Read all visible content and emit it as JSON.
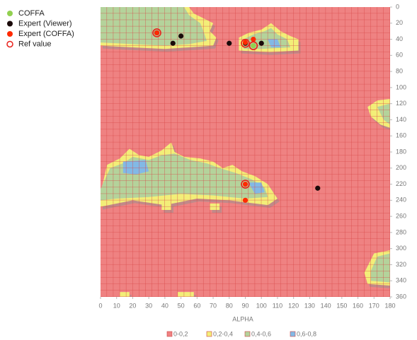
{
  "chart_data": {
    "type": "contour_scatter",
    "xlabel": "ALPHA",
    "xlim": [
      0,
      180
    ],
    "xticks": [
      0,
      10,
      20,
      30,
      40,
      50,
      60,
      70,
      80,
      90,
      100,
      110,
      120,
      130,
      140,
      150,
      160,
      170,
      180
    ],
    "ylim": [
      360,
      0
    ],
    "yticks": [
      0,
      20,
      40,
      60,
      80,
      100,
      120,
      140,
      160,
      180,
      200,
      220,
      240,
      260,
      280,
      300,
      320,
      340,
      360
    ],
    "levels": [
      {
        "name": "0-0,2",
        "color": "#ef8282"
      },
      {
        "name": "0,2-0,4",
        "color": "#f3ee78"
      },
      {
        "name": "0,4-0,6",
        "color": "#b4d39b"
      },
      {
        "name": "0,6-0,8",
        "color": "#82b9e6"
      }
    ],
    "regions": [
      {
        "level": 1,
        "alpha": [
          0,
          55,
          58,
          62,
          70,
          68,
          72,
          70,
          55,
          40,
          20,
          0
        ],
        "beta": [
          0,
          0,
          8,
          12,
          20,
          30,
          38,
          48,
          50,
          52,
          50,
          48
        ]
      },
      {
        "level": 2,
        "alpha": [
          0,
          52,
          55,
          62,
          64,
          66,
          55,
          40,
          20,
          0
        ],
        "beta": [
          0,
          0,
          10,
          20,
          30,
          42,
          46,
          48,
          46,
          44
        ]
      },
      {
        "level": 1,
        "alpha": [
          86,
          92,
          100,
          106,
          112,
          118,
          123,
          123,
          105,
          86
        ],
        "beta": [
          38,
          32,
          28,
          20,
          30,
          36,
          40,
          54,
          56,
          54
        ]
      },
      {
        "level": 2,
        "alpha": [
          89,
          95,
          102,
          106,
          110,
          116,
          118,
          100,
          89
        ],
        "beta": [
          40,
          34,
          30,
          26,
          34,
          40,
          50,
          52,
          52
        ]
      },
      {
        "level": 3,
        "alpha": [
          104,
          110,
          112,
          106
        ],
        "beta": [
          40,
          40,
          50,
          50
        ]
      },
      {
        "level": 1,
        "alpha": [
          0,
          4,
          12,
          18,
          24,
          30,
          38,
          44,
          46,
          52,
          62,
          70,
          76,
          82,
          88,
          96,
          104,
          110,
          104,
          96,
          80,
          60,
          40,
          20,
          0
        ],
        "beta": [
          232,
          196,
          188,
          176,
          184,
          186,
          178,
          168,
          180,
          186,
          188,
          192,
          200,
          196,
          204,
          210,
          220,
          238,
          246,
          244,
          240,
          238,
          246,
          240,
          248
        ]
      },
      {
        "level": 2,
        "alpha": [
          0,
          6,
          14,
          20,
          30,
          38,
          46,
          56,
          66,
          74,
          84,
          94,
          102,
          104,
          90,
          70,
          50,
          30,
          10,
          0
        ],
        "beta": [
          226,
          200,
          194,
          186,
          190,
          184,
          182,
          190,
          194,
          200,
          206,
          214,
          224,
          236,
          238,
          234,
          232,
          236,
          238,
          240
        ]
      },
      {
        "level": 3,
        "alpha": [
          14,
          28,
          30,
          22,
          14
        ],
        "beta": [
          192,
          190,
          204,
          208,
          206
        ]
      },
      {
        "level": 3,
        "alpha": [
          92,
          100,
          102,
          96
        ],
        "beta": [
          218,
          218,
          230,
          232
        ]
      },
      {
        "level": 1,
        "alpha": [
          166,
          172,
          180,
          180,
          174,
          168
        ],
        "beta": [
          124,
          116,
          114,
          150,
          146,
          136
        ]
      },
      {
        "level": 2,
        "alpha": [
          172,
          180,
          180,
          176
        ],
        "beta": [
          124,
          120,
          146,
          140
        ]
      },
      {
        "level": 1,
        "alpha": [
          164,
          170,
          180,
          180,
          166
        ],
        "beta": [
          330,
          306,
          302,
          346,
          344
        ]
      },
      {
        "level": 2,
        "alpha": [
          168,
          172,
          180,
          180,
          168
        ],
        "beta": [
          328,
          310,
          306,
          342,
          340
        ]
      },
      {
        "level": 1,
        "alpha": [
          12,
          18,
          18,
          12
        ],
        "beta": [
          354,
          354,
          360,
          360
        ]
      },
      {
        "level": 1,
        "alpha": [
          48,
          58,
          58,
          48
        ],
        "beta": [
          354,
          354,
          360,
          360
        ]
      },
      {
        "level": 1,
        "alpha": [
          68,
          74,
          74,
          68
        ],
        "beta": [
          244,
          244,
          252,
          252
        ]
      },
      {
        "level": 1,
        "alpha": [
          38,
          44,
          44,
          38
        ],
        "beta": [
          244,
          244,
          252,
          252
        ]
      }
    ],
    "series": [
      {
        "name": "COFFA",
        "color": "#92d050",
        "marker": "dot",
        "alpha": [
          95
        ],
        "beta": [
          48
        ]
      },
      {
        "name": "Expert (Viewer)",
        "color": "#1a0a0a",
        "marker": "dot",
        "alpha": [
          35,
          50,
          45,
          80,
          90,
          100,
          135
        ],
        "beta": [
          32,
          36,
          45,
          45,
          45,
          45,
          225
        ]
      },
      {
        "name": "Expert (COFFA)",
        "color": "#ff2a00",
        "marker": "dot",
        "alpha": [
          35,
          90,
          95,
          90,
          90
        ],
        "beta": [
          32,
          44,
          40,
          220,
          240
        ]
      },
      {
        "name": "Ref value",
        "color": "#e8201a",
        "marker": "ring",
        "alpha": [
          35,
          90,
          95,
          90
        ],
        "beta": [
          32,
          45,
          48,
          220
        ]
      }
    ]
  }
}
